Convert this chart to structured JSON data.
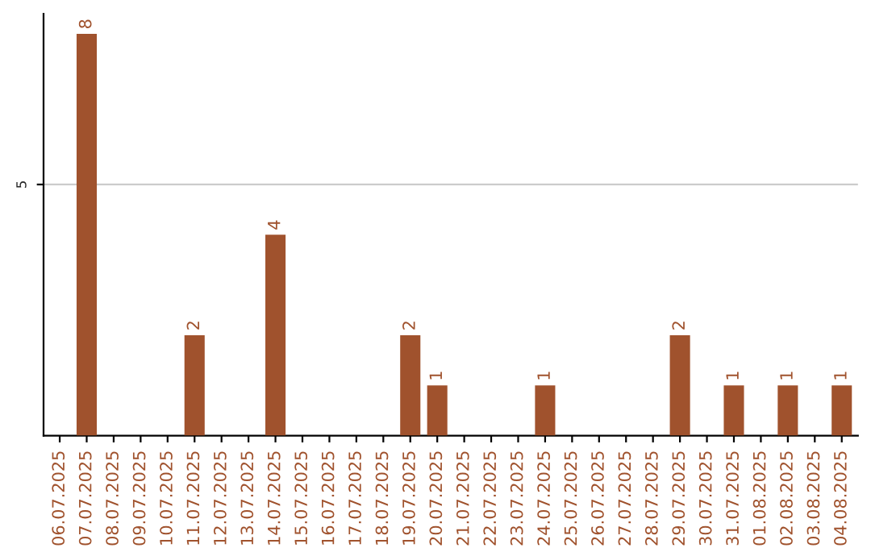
{
  "chart_data": {
    "type": "bar",
    "categories": [
      "06.07.2025",
      "07.07.2025",
      "08.07.2025",
      "09.07.2025",
      "10.07.2025",
      "11.07.2025",
      "12.07.2025",
      "13.07.2025",
      "14.07.2025",
      "15.07.2025",
      "16.07.2025",
      "17.07.2025",
      "18.07.2025",
      "19.07.2025",
      "20.07.2025",
      "21.07.2025",
      "22.07.2025",
      "23.07.2025",
      "24.07.2025",
      "25.07.2025",
      "26.07.2025",
      "27.07.2025",
      "28.07.2025",
      "29.07.2025",
      "30.07.2025",
      "31.07.2025",
      "01.08.2025",
      "02.08.2025",
      "03.08.2025",
      "04.08.2025"
    ],
    "values": [
      0,
      8,
      0,
      0,
      0,
      2,
      0,
      0,
      4,
      0,
      0,
      0,
      0,
      2,
      1,
      0,
      0,
      0,
      1,
      0,
      0,
      0,
      0,
      2,
      0,
      1,
      0,
      1,
      0,
      1
    ],
    "value_labels": [
      null,
      "8",
      null,
      null,
      null,
      "2",
      null,
      null,
      "4",
      null,
      null,
      null,
      null,
      "2",
      "1",
      null,
      null,
      null,
      "1",
      null,
      null,
      null,
      null,
      "2",
      null,
      "1",
      null,
      "1",
      null,
      "1"
    ],
    "color": "#a0522d",
    "ylim": [
      0,
      8.4
    ],
    "yticks": [
      5
    ],
    "grid": "y"
  }
}
